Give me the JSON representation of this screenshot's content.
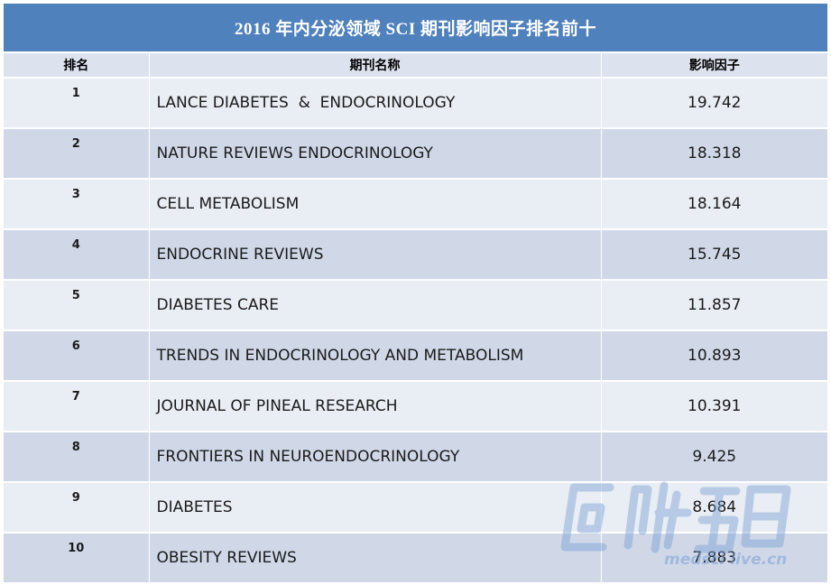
{
  "title": "2016 年内分泌领域 SCI 期刊影响因子排名前十",
  "columns": {
    "rank": "排名",
    "journal": "期刊名称",
    "impact_factor": "影响因子"
  },
  "rows": [
    {
      "rank": "1",
      "journal": "LANCE DIABETES  &  ENDOCRINOLOGY",
      "impact_factor": "19.742"
    },
    {
      "rank": "2",
      "journal": "NATURE REVIEWS ENDOCRINOLOGY",
      "impact_factor": "18.318"
    },
    {
      "rank": "3",
      "journal": "CELL METABOLISM",
      "impact_factor": "18.164"
    },
    {
      "rank": "4",
      "journal": "ENDOCRINE REVIEWS",
      "impact_factor": "15.745"
    },
    {
      "rank": "5",
      "journal": "DIABETES CARE",
      "impact_factor": "11.857"
    },
    {
      "rank": "6",
      "journal": "TRENDS IN ENDOCRINOLOGY AND METABOLISM",
      "impact_factor": "10.893"
    },
    {
      "rank": "7",
      "journal": "JOURNAL OF PINEAL RESEARCH",
      "impact_factor": "10.391"
    },
    {
      "rank": "8",
      "journal": "FRONTIERS IN NEUROENDOCRINOLOGY",
      "impact_factor": "9.425"
    },
    {
      "rank": "9",
      "journal": "DIABETES",
      "impact_factor": "8.684"
    },
    {
      "rank": "10",
      "journal": "OBESITY REVIEWS",
      "impact_factor": "7.883"
    }
  ],
  "watermark": {
    "text": "medsci live.cn",
    "icon": "medsci-logo-icon",
    "color": "#78a0d2"
  },
  "colors": {
    "header": "#4f81bd",
    "row_light": "#e9edf4",
    "row_dark": "#d0d8e8"
  }
}
